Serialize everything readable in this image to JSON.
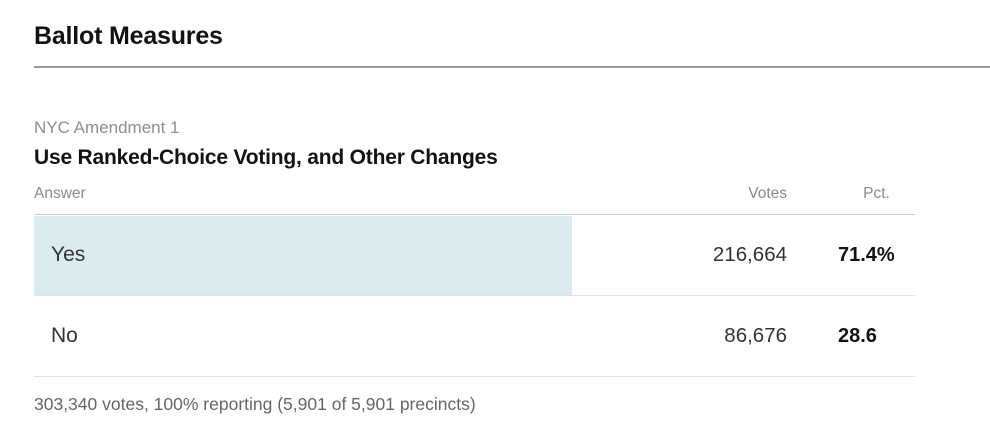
{
  "page": {
    "title": "Ballot Measures"
  },
  "measure": {
    "kicker": "NYC Amendment 1",
    "headline": "Use Ranked-Choice Voting, and Other Changes"
  },
  "results": {
    "columns": {
      "answer": "Answer",
      "votes": "Votes",
      "pct": "Pct."
    },
    "rows": [
      {
        "answer": "Yes",
        "votes": "216,664",
        "pct": "71.4%",
        "pct_value": 71.4,
        "leading": true
      },
      {
        "answer": "No",
        "votes": "86,676",
        "pct": "28.6",
        "pct_value": 28.6,
        "leading": false
      }
    ],
    "summary": "303,340 votes, 100% reporting (5,901 of 5,901 precincts)"
  },
  "colors": {
    "leader_bar_fill": "#dbecf0",
    "title_rule": "#9a9a9a",
    "row_divider": "#e2e2e2"
  }
}
